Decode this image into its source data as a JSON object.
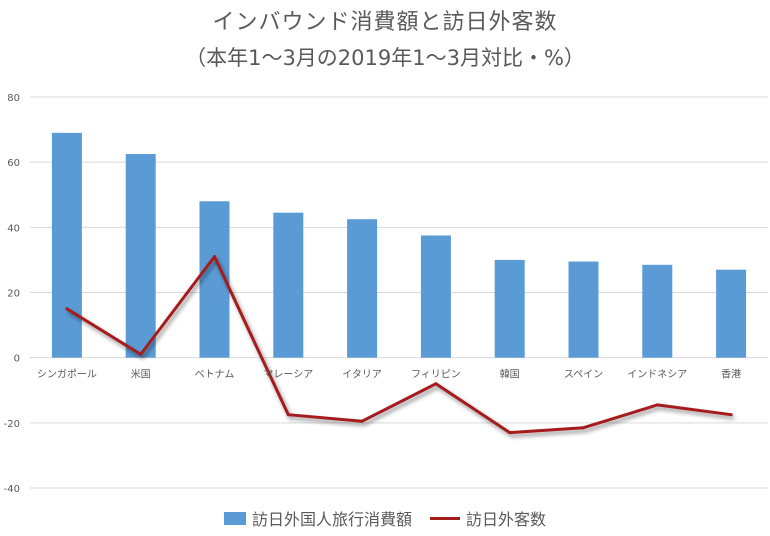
{
  "chart_data": {
    "type": "bar+line",
    "title": "インバウンド消費額と訪日外客数",
    "subtitle": "（本年1〜3月の2019年1〜3月対比・%）",
    "categories": [
      "シンガポール",
      "米国",
      "ベトナム",
      "マレーシア",
      "イタリア",
      "フィリピン",
      "韓国",
      "スペイン",
      "インドネシア",
      "香港"
    ],
    "series": [
      {
        "name": "訪日外国人旅行消費額",
        "type": "bar",
        "color": "#5B9BD5",
        "values": [
          69,
          62.5,
          48,
          44.5,
          42.5,
          37.5,
          30,
          29.5,
          28.5,
          27
        ]
      },
      {
        "name": "訪日外客数",
        "type": "line",
        "color": "#A51C1C",
        "values": [
          15,
          1,
          31,
          -17.5,
          -19.5,
          -8,
          -23,
          -21.5,
          -14.5,
          -17.5
        ]
      }
    ],
    "ylim": [
      -40,
      80
    ],
    "yticks": [
      -40,
      -20,
      0,
      20,
      40,
      60,
      80
    ],
    "grid": true,
    "legend_position": "bottom"
  }
}
